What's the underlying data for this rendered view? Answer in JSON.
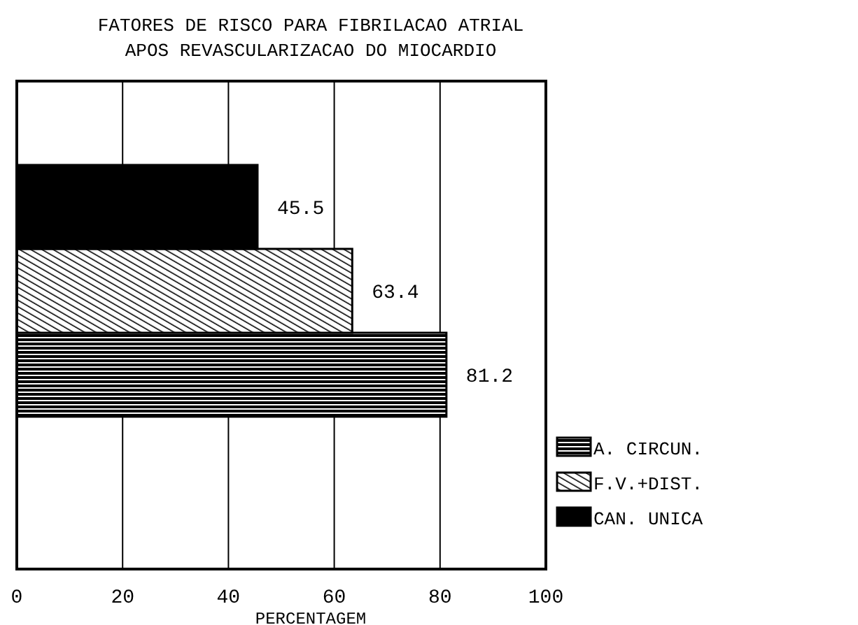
{
  "chart_data": {
    "type": "bar",
    "orientation": "horizontal",
    "title": "FATORES DE RISCO PARA FIBRILACAO ATRIAL",
    "subtitle": "APOS REVASCULARIZACAO DO MIOCARDIO",
    "xlabel": "PERCENTAGEM",
    "categories": [
      null
    ],
    "series": [
      {
        "name": "A. CIRCUN.",
        "color": "#000000",
        "values": [
          81.2
        ]
      },
      {
        "name": "F.V.+DIST.",
        "color": "#000000",
        "values": [
          63.4
        ]
      },
      {
        "name": "CAN. UNICA",
        "color": "#000000",
        "values": [
          45.5
        ]
      }
    ],
    "xlim": [
      0,
      100
    ],
    "xticks": [
      0,
      20,
      40,
      60,
      80,
      100
    ],
    "grid": "x",
    "legend": "bottom right",
    "data_labels": true
  }
}
